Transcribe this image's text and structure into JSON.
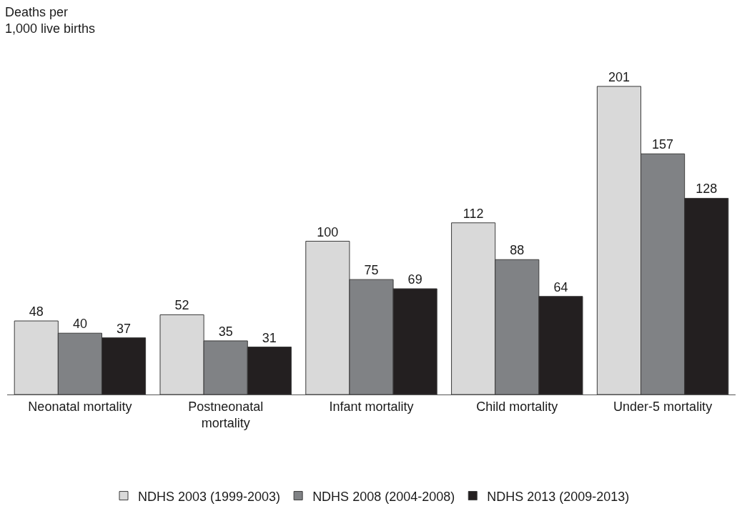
{
  "chart_data": {
    "type": "bar",
    "ylabel": "Deaths per\n1,000 live births",
    "categories": [
      "Neonatal mortality",
      "Postneonatal\nmortality",
      "Infant mortality",
      "Child mortality",
      "Under-5 mortality"
    ],
    "series": [
      {
        "name": "NDHS 2003 (1999-2003)",
        "color": "#d9d9d9",
        "values": [
          48,
          52,
          100,
          112,
          201
        ]
      },
      {
        "name": "NDHS 2008 (2004-2008)",
        "color": "#808285",
        "values": [
          40,
          35,
          75,
          88,
          157
        ]
      },
      {
        "name": "NDHS 2013 (2009-2013)",
        "color": "#231f20",
        "values": [
          37,
          31,
          69,
          64,
          128
        ]
      }
    ],
    "data_labels": true,
    "legend": "bottom"
  }
}
